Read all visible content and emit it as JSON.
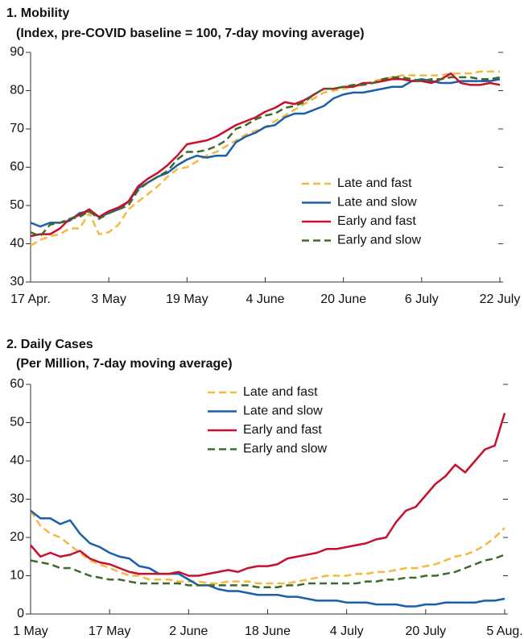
{
  "chart_data": [
    {
      "type": "line",
      "title": "1. Mobility",
      "subtitle": "(Index, pre-COVID baseline = 100, 7-day moving average)",
      "categories": [
        "17 Apr.",
        null,
        null,
        null,
        null,
        null,
        null,
        null,
        "3 May",
        null,
        null,
        null,
        null,
        null,
        null,
        null,
        "19 May",
        null,
        null,
        null,
        null,
        null,
        null,
        null,
        "4 June",
        null,
        null,
        null,
        null,
        null,
        null,
        null,
        "20 June",
        null,
        null,
        null,
        null,
        null,
        null,
        null,
        "6 July",
        null,
        null,
        null,
        null,
        null,
        null,
        null,
        "22 July"
      ],
      "ylim": [
        30,
        90
      ],
      "yticks": [
        30,
        40,
        50,
        60,
        70,
        80,
        90
      ],
      "legend": "center-right",
      "series": [
        {
          "name": "Late and fast",
          "color": "#f5b942",
          "dashed": true,
          "values": [
            39.5,
            41,
            42,
            42.5,
            44,
            44,
            48,
            42.5,
            43,
            45,
            49,
            51,
            53,
            55,
            57.5,
            59.5,
            60,
            61.5,
            63,
            64,
            65.5,
            67,
            68.5,
            69.5,
            70.5,
            72,
            73.5,
            75,
            76.5,
            78,
            79.5,
            80,
            80.5,
            81,
            81.5,
            82.5,
            83,
            83.5,
            84,
            84,
            84,
            84,
            84,
            84.5,
            84.5,
            84.5,
            85,
            85,
            85
          ]
        },
        {
          "name": "Late and slow",
          "color": "#1a5fa8",
          "dashed": false,
          "values": [
            45.5,
            44.5,
            45.5,
            45.5,
            46,
            48,
            48.5,
            47,
            48,
            49,
            51,
            54.5,
            56,
            57.5,
            58.5,
            60.5,
            62,
            63,
            62.5,
            63,
            63,
            66.5,
            68,
            69,
            70.5,
            71,
            73,
            74,
            74,
            75,
            76,
            78,
            79,
            79.5,
            79.5,
            80,
            80.5,
            81,
            81,
            82.5,
            83,
            82.5,
            82,
            82,
            82.5,
            82.5,
            82.5,
            82.5,
            83
          ]
        },
        {
          "name": "Early and fast",
          "color": "#c8102e",
          "dashed": false,
          "values": [
            42,
            42.5,
            42.5,
            44,
            46.5,
            47.5,
            49,
            47,
            48.5,
            49.5,
            51,
            55,
            57,
            58.5,
            60.5,
            63,
            66,
            66.5,
            67,
            68,
            69.5,
            71,
            72,
            73,
            74.5,
            75.5,
            77,
            76.5,
            77.5,
            79,
            80.5,
            80.5,
            81,
            81,
            82,
            82,
            82.5,
            83,
            83,
            82.5,
            82.5,
            82,
            83,
            84.5,
            82,
            81.5,
            81.5,
            82,
            81.5
          ]
        },
        {
          "name": "Early and slow",
          "color": "#3d6b2a",
          "dashed": true,
          "values": [
            43,
            42,
            45,
            45.5,
            46.5,
            47,
            48.5,
            46.5,
            48,
            49,
            50,
            54,
            56,
            57.5,
            59,
            62,
            64,
            64,
            64.5,
            65.5,
            67,
            70,
            71,
            72.5,
            73.5,
            74,
            75.5,
            76,
            77,
            79,
            80.5,
            80.5,
            81,
            81.5,
            81.5,
            82,
            83,
            83.5,
            83.5,
            83,
            82.5,
            83,
            83,
            83.5,
            83.5,
            83.5,
            83,
            83,
            83.5
          ]
        }
      ]
    },
    {
      "type": "line",
      "title": "2. Daily Cases",
      "subtitle": "(Per Million, 7-day moving average)",
      "categories": [
        "1 May",
        null,
        null,
        null,
        null,
        null,
        null,
        null,
        "17 May",
        null,
        null,
        null,
        null,
        null,
        null,
        null,
        "2 June",
        null,
        null,
        null,
        null,
        null,
        null,
        null,
        "18 June",
        null,
        null,
        null,
        null,
        null,
        null,
        null,
        "4 July",
        null,
        null,
        null,
        null,
        null,
        null,
        null,
        "20 July",
        null,
        null,
        null,
        null,
        null,
        null,
        null,
        "5 Aug."
      ],
      "ylim": [
        0,
        60
      ],
      "yticks": [
        0,
        10,
        20,
        30,
        40,
        50,
        60
      ],
      "legend": "upper-center",
      "series": [
        {
          "name": "Late and fast",
          "color": "#f5b942",
          "dashed": true,
          "values": [
            27,
            23,
            21,
            20,
            18,
            16,
            14,
            13,
            12,
            11,
            10,
            10,
            9,
            9,
            9,
            8.5,
            8.5,
            8.5,
            8,
            8,
            8.5,
            8.5,
            8.5,
            8,
            8,
            8,
            8,
            8.5,
            9,
            9.5,
            10,
            10,
            10,
            10.5,
            10.5,
            11,
            11,
            11.5,
            12,
            12,
            12.5,
            13,
            14,
            15,
            15.5,
            16.5,
            18,
            20,
            22.5
          ]
        },
        {
          "name": "Late and slow",
          "color": "#1a5fa8",
          "dashed": false,
          "values": [
            27,
            25,
            25,
            23.5,
            24.5,
            21,
            18.5,
            17.5,
            16,
            15,
            14.5,
            12.5,
            12,
            10.5,
            10.5,
            10.5,
            9,
            7.5,
            7.5,
            6.5,
            6,
            6,
            5.5,
            5,
            5,
            5,
            4.5,
            4.5,
            4,
            3.5,
            3.5,
            3.5,
            3,
            3,
            3,
            2.5,
            2.5,
            2.5,
            2,
            2,
            2.5,
            2.5,
            3,
            3,
            3,
            3,
            3.5,
            3.5,
            4
          ]
        },
        {
          "name": "Early and fast",
          "color": "#c8102e",
          "dashed": false,
          "values": [
            18,
            15,
            16,
            15,
            15.5,
            16.5,
            14.5,
            13.5,
            13,
            12,
            11,
            10.5,
            10.5,
            10.5,
            10.5,
            11,
            10,
            10,
            10.5,
            11,
            11.5,
            11,
            12,
            12.5,
            12.5,
            13,
            14.5,
            15,
            15.5,
            16,
            17,
            17,
            17.5,
            18,
            18.5,
            19.5,
            20,
            24,
            27,
            28,
            31,
            34,
            36,
            39,
            37,
            40,
            43,
            44,
            52.5
          ]
        },
        {
          "name": "Early and slow",
          "color": "#3d6b2a",
          "dashed": true,
          "values": [
            14,
            13.5,
            13,
            12,
            12,
            11,
            10,
            9.5,
            9,
            9,
            8.5,
            8,
            8,
            8,
            8,
            8,
            7.5,
            7.5,
            7.5,
            7.5,
            7.5,
            7.5,
            7.5,
            7,
            7,
            7,
            7.5,
            7.5,
            8,
            8,
            8,
            8,
            8,
            8,
            8.5,
            8.5,
            9,
            9,
            9.5,
            9.5,
            10,
            10,
            10.5,
            11,
            12,
            13,
            14,
            14.5,
            15.5
          ]
        }
      ]
    }
  ]
}
